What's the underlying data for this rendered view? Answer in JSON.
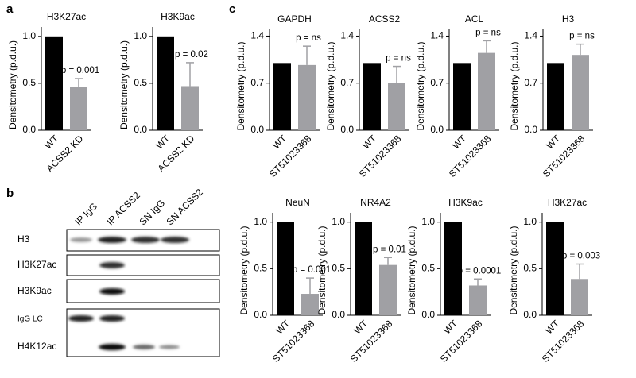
{
  "panels": [
    "a",
    "b",
    "c"
  ],
  "blot": {
    "columns": [
      "IP IgG",
      "IP ACSS2",
      "SN IgG",
      "SN ACSS2"
    ],
    "rows": [
      "H3",
      "H3K27ac",
      "H3K9ac",
      "IgG LC",
      "H4K12ac"
    ]
  },
  "chart_data": [
    {
      "type": "bar",
      "title": "H3K27ac",
      "y_label": "Densitometry (p.d.u.)",
      "categories": [
        "WT",
        "ACSS2 KD"
      ],
      "values": [
        1.0,
        0.46
      ],
      "errors": [
        null,
        0.09
      ],
      "colors": [
        "#000000",
        "#a0a0a4"
      ],
      "annotation": "p = 0.001",
      "ylim": [
        0,
        1.1
      ],
      "yticks": [
        {
          "value": 0,
          "label": "0.0"
        },
        0.5,
        {
          "value": 1,
          "label": "1.0"
        }
      ]
    },
    {
      "type": "bar",
      "title": "H3K9ac",
      "y_label": "Densitometry (p.d.u.)",
      "categories": [
        "WT",
        "ACSS2 KD"
      ],
      "values": [
        1.0,
        0.47
      ],
      "errors": [
        null,
        0.25
      ],
      "colors": [
        "#000000",
        "#a0a0a4"
      ],
      "annotation": "p = 0.02",
      "ylim": [
        0,
        1.1
      ],
      "yticks": [
        {
          "value": 0,
          "label": "0.0"
        },
        0.5,
        {
          "value": 1,
          "label": "1.0"
        }
      ]
    },
    {
      "type": "bar",
      "title": "GAPDH",
      "y_label": "Densitometry (p.d.u.)",
      "categories": [
        "WT",
        "ST51023368"
      ],
      "values": [
        1.0,
        0.97
      ],
      "errors": [
        null,
        0.28
      ],
      "colors": [
        "#000000",
        "#a0a0a4"
      ],
      "annotation": "p = ns",
      "ylim": [
        0,
        1.5
      ],
      "yticks": [
        {
          "value": 0,
          "label": "0.0"
        },
        0.7,
        1.4
      ]
    },
    {
      "type": "bar",
      "title": "ACSS2",
      "y_label": "Densitometry (p.d.u.)",
      "categories": [
        "WT",
        "ST51023368"
      ],
      "values": [
        1.0,
        0.7
      ],
      "errors": [
        null,
        0.25
      ],
      "colors": [
        "#000000",
        "#a0a0a4"
      ],
      "annotation": "p = ns",
      "ylim": [
        0,
        1.5
      ],
      "yticks": [
        {
          "value": 0,
          "label": "0.0"
        },
        0.7,
        1.4
      ]
    },
    {
      "type": "bar",
      "title": "ACL",
      "y_label": "Densitometry (p.d.u.)",
      "categories": [
        "WT",
        "ST51023368"
      ],
      "values": [
        1.0,
        1.15
      ],
      "errors": [
        null,
        0.18
      ],
      "colors": [
        "#000000",
        "#a0a0a4"
      ],
      "annotation": "p = ns",
      "ylim": [
        0,
        1.5
      ],
      "yticks": [
        {
          "value": 0,
          "label": "0.0"
        },
        0.7,
        1.4
      ]
    },
    {
      "type": "bar",
      "title": "H3",
      "y_label": "Densitometry (p.d.u.)",
      "categories": [
        "WT",
        "ST51023368"
      ],
      "values": [
        1.0,
        1.12
      ],
      "errors": [
        null,
        0.16
      ],
      "colors": [
        "#000000",
        "#a0a0a4"
      ],
      "annotation": "p = ns",
      "ylim": [
        0,
        1.5
      ],
      "yticks": [
        {
          "value": 0,
          "label": "0.0"
        },
        0.7,
        1.4
      ]
    },
    {
      "type": "bar",
      "title": "NeuN",
      "y_label": "Densitometry (p.d.u.)",
      "categories": [
        "WT",
        "ST51023368"
      ],
      "values": [
        1.0,
        0.23
      ],
      "errors": [
        null,
        0.17
      ],
      "colors": [
        "#000000",
        "#a0a0a4"
      ],
      "annotation": "p = 0.001",
      "ylim": [
        0,
        1.1
      ],
      "yticks": [
        {
          "value": 0,
          "label": "0.0"
        },
        0.5,
        {
          "value": 1,
          "label": "1.0"
        }
      ]
    },
    {
      "type": "bar",
      "title": "NR4A2",
      "y_label": "Densitometry (p.d.u.)",
      "categories": [
        "WT",
        "ST51023368"
      ],
      "values": [
        1.0,
        0.54
      ],
      "errors": [
        null,
        0.08
      ],
      "colors": [
        "#000000",
        "#a0a0a4"
      ],
      "annotation": "p = 0.01",
      "ylim": [
        0,
        1.1
      ],
      "yticks": [
        {
          "value": 0,
          "label": "0.0"
        },
        0.5,
        {
          "value": 1,
          "label": "1.0"
        }
      ]
    },
    {
      "type": "bar",
      "title": "H3K9ac",
      "y_label": "Densitometry (p.d.u.)",
      "categories": [
        "WT",
        "ST51023368"
      ],
      "values": [
        1.0,
        0.32
      ],
      "errors": [
        null,
        0.07
      ],
      "colors": [
        "#000000",
        "#a0a0a4"
      ],
      "annotation": "p = 0.0001",
      "ylim": [
        0,
        1.1
      ],
      "yticks": [
        {
          "value": 0,
          "label": "0.0"
        },
        0.5,
        {
          "value": 1,
          "label": "1.0"
        }
      ]
    },
    {
      "type": "bar",
      "title": "H3K27ac",
      "y_label": "Densitometry (p.d.u.)",
      "categories": [
        "WT",
        "ST51023368"
      ],
      "values": [
        1.0,
        0.39
      ],
      "errors": [
        null,
        0.16
      ],
      "colors": [
        "#000000",
        "#a0a0a4"
      ],
      "annotation": "p = 0.003",
      "ylim": [
        0,
        1.1
      ],
      "yticks": [
        {
          "value": 0,
          "label": "0.0"
        },
        0.5,
        {
          "value": 1,
          "label": "1.0"
        }
      ]
    }
  ]
}
